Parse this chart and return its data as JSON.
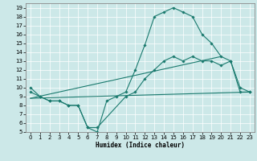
{
  "bg_color": "#cce8e8",
  "line_color": "#1a7a6e",
  "xlabel": "Humidex (Indice chaleur)",
  "xlim": [
    -0.5,
    23.5
  ],
  "ylim": [
    5,
    19.5
  ],
  "yticks": [
    5,
    6,
    7,
    8,
    9,
    10,
    11,
    12,
    13,
    14,
    15,
    16,
    17,
    18,
    19
  ],
  "xticks": [
    0,
    1,
    2,
    3,
    4,
    5,
    6,
    7,
    8,
    9,
    10,
    11,
    12,
    13,
    14,
    15,
    16,
    17,
    18,
    19,
    20,
    21,
    22,
    23
  ],
  "line1_x": [
    0,
    1,
    2,
    3,
    4,
    5,
    6,
    7,
    8,
    9,
    10,
    11,
    12,
    13,
    14,
    15,
    16,
    17,
    18,
    19,
    20,
    21,
    22,
    23
  ],
  "line1_y": [
    10,
    9,
    8.5,
    8.5,
    8,
    8,
    5.5,
    5,
    8.5,
    9,
    9.5,
    12,
    14.8,
    18,
    18.5,
    19,
    18.5,
    18,
    16,
    15,
    13.5,
    13,
    10,
    9.5
  ],
  "line2_x": [
    0,
    1,
    2,
    3,
    4,
    5,
    6,
    7,
    10,
    11,
    12,
    13,
    14,
    15,
    16,
    17,
    18,
    19,
    20,
    21,
    22,
    23
  ],
  "line2_y": [
    9.5,
    9,
    8.5,
    8.5,
    8,
    8,
    5.5,
    5.5,
    9.0,
    9.5,
    11,
    12,
    13,
    13.5,
    13,
    13.5,
    13,
    13,
    12.5,
    13,
    9.5,
    9.5
  ],
  "line3_x": [
    0,
    23
  ],
  "line3_y": [
    8.8,
    9.5
  ],
  "line4_x": [
    0,
    20
  ],
  "line4_y": [
    8.8,
    13.5
  ]
}
